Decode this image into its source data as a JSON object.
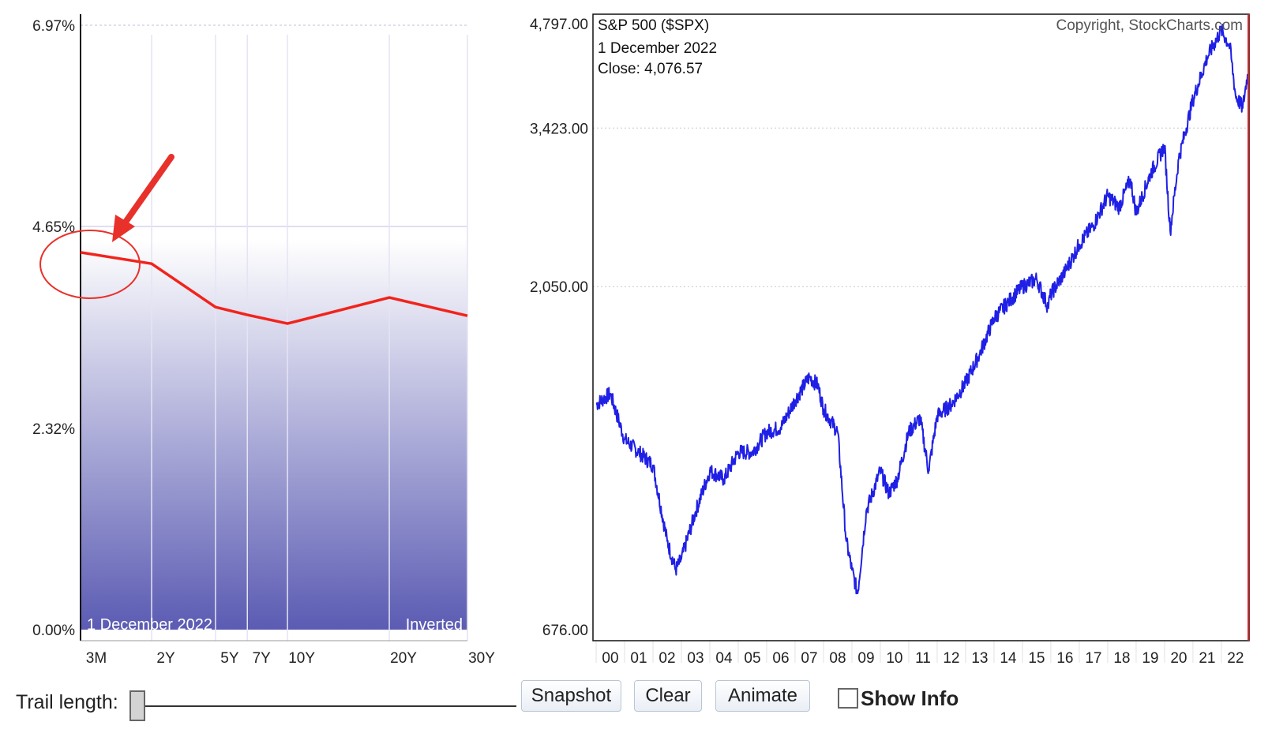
{
  "yield_chart": {
    "y_ticks": [
      "6.97%",
      "4.65%",
      "2.32%",
      "0.00%"
    ],
    "x_ticks": [
      "3M",
      "2Y",
      "5Y",
      "7Y",
      "10Y",
      "20Y",
      "30Y"
    ],
    "date_label": "1  December 2022",
    "mode_label": "Inverted",
    "colors": {
      "curve": "#f2231b",
      "annotation": "#e8312a",
      "fill_top": "#ffffff",
      "fill_bottom": "#5b5bb3"
    }
  },
  "index_chart": {
    "title": "S&P 500 ($SPX)",
    "copyright": "Copyright, StockCharts.com",
    "date_label": "1  December 2022",
    "close_label": "Close: 4,076.57",
    "y_ticks": [
      "4,797.00",
      "3,423.00",
      "2,050.00",
      "676.00"
    ],
    "x_ticks": [
      "00",
      "01",
      "02",
      "03",
      "04",
      "05",
      "06",
      "07",
      "08",
      "09",
      "10",
      "11",
      "12",
      "13",
      "14",
      "15",
      "16",
      "17",
      "18",
      "19",
      "20",
      "21",
      "22"
    ],
    "colors": {
      "line": "#1f1fe6",
      "marker": "#e02020"
    }
  },
  "chart_data": [
    {
      "type": "line",
      "title": "",
      "xlabel": "",
      "ylabel": "",
      "categories": [
        "3M",
        "2Y",
        "5Y",
        "7Y",
        "10Y",
        "20Y",
        "30Y"
      ],
      "values": [
        4.35,
        4.22,
        3.72,
        3.63,
        3.53,
        3.83,
        3.62
      ],
      "ylim": [
        0,
        6.97
      ],
      "grid": true
    },
    {
      "type": "line",
      "title": "S&P 500 ($SPX)",
      "xlabel": "",
      "ylabel": "",
      "x": [
        2000,
        2000.5,
        2001,
        2001.5,
        2002,
        2002.5,
        2002.8,
        2003,
        2003.5,
        2004,
        2004.5,
        2005,
        2005.5,
        2006,
        2006.5,
        2007,
        2007.5,
        2007.8,
        2008,
        2008.5,
        2008.8,
        2009,
        2009.2,
        2009.5,
        2010,
        2010.3,
        2010.6,
        2011,
        2011.4,
        2011.7,
        2012,
        2012.5,
        2013,
        2013.5,
        2014,
        2014.5,
        2015,
        2015.5,
        2015.9,
        2016,
        2016.5,
        2017,
        2017.5,
        2018,
        2018.4,
        2018.8,
        2019,
        2019.5,
        2020,
        2020.2,
        2020.5,
        2021,
        2021.5,
        2022,
        2022.3,
        2022.5,
        2022.75,
        2022.92
      ],
      "values": [
        1400,
        1450,
        1250,
        1200,
        1150,
        900,
        820,
        850,
        990,
        1130,
        1100,
        1200,
        1200,
        1280,
        1300,
        1420,
        1530,
        1490,
        1380,
        1280,
        900,
        820,
        760,
        990,
        1130,
        1050,
        1100,
        1280,
        1340,
        1130,
        1350,
        1400,
        1500,
        1650,
        1850,
        1950,
        2050,
        2100,
        1920,
        2000,
        2150,
        2350,
        2500,
        2750,
        2650,
        2900,
        2600,
        2950,
        3230,
        2450,
        3100,
        3750,
        4300,
        4700,
        4450,
        3800,
        3650,
        4076
      ]
    }
  ]
}
